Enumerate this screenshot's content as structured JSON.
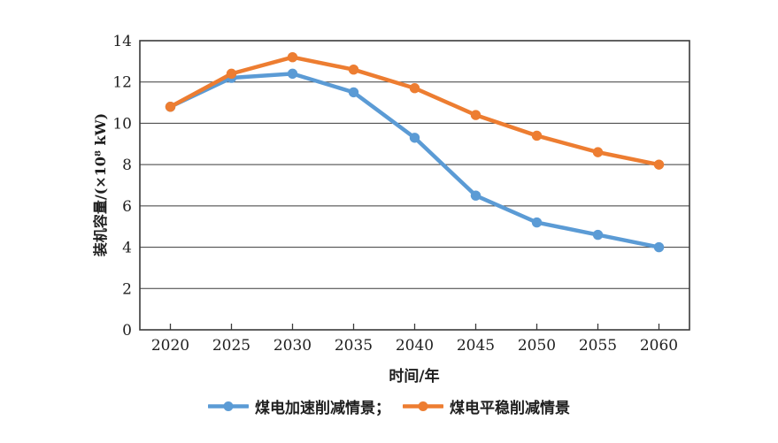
{
  "chart_data": {
    "type": "line",
    "title": "",
    "categories": [
      "2020",
      "2025",
      "2030",
      "2035",
      "2040",
      "2045",
      "2050",
      "2055",
      "2060"
    ],
    "series": [
      {
        "name": "煤电加速削减情景",
        "color": "#5B9BD5",
        "values": [
          10.8,
          12.2,
          12.4,
          11.5,
          9.3,
          6.5,
          5.2,
          4.6,
          4.0
        ]
      },
      {
        "name": "煤电平稳削减情景",
        "color": "#ED7D31",
        "values": [
          10.8,
          12.4,
          13.2,
          12.6,
          11.7,
          10.4,
          9.4,
          8.6,
          8.0
        ]
      }
    ],
    "xlabel": "时间/年",
    "ylabel": "装机容量/(×10⁸ kW)",
    "ylim": [
      0,
      14
    ],
    "ytick_step": 2,
    "grid": "horizontal",
    "legend_position": "bottom",
    "legend": [
      {
        "label": "煤电加速削减情景；",
        "color": "#5B9BD5"
      },
      {
        "label": "煤电平稳削减情景",
        "color": "#ED7D31"
      }
    ],
    "axis_color": "#3a3a3a",
    "text_color": "#1f1f1f",
    "background": "#ffffff",
    "marker": "circle"
  }
}
